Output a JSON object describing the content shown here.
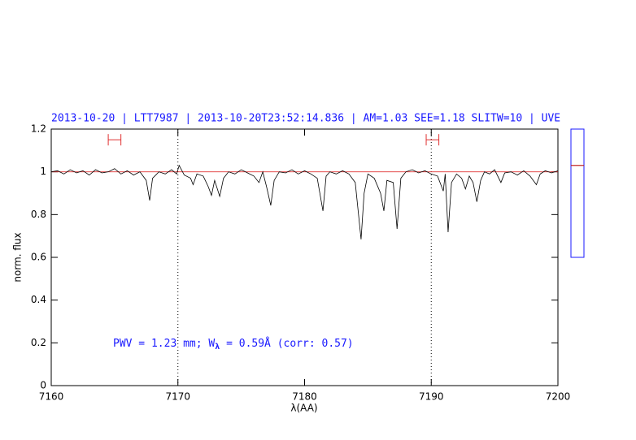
{
  "chart_data": {
    "type": "line",
    "title": "2013-10-20 | LTT7987 | 2013-10-20T23:52:14.836 | AM=1.03 SEE=1.18 SLITW=10 | UVE",
    "xlabel": "λ(AA)",
    "ylabel": "norm. flux",
    "annotation": [
      "PWV = 1.23 mm; W",
      "λ",
      " = 0.59Å (corr: 0.57)"
    ],
    "xlim": [
      7160,
      7200
    ],
    "xticks": [
      7160,
      7170,
      7180,
      7190,
      7200
    ],
    "ylim": [
      0,
      1.2
    ],
    "yticks": [
      0,
      0.2,
      0.4,
      0.6,
      0.8,
      1,
      1.2
    ],
    "vlines": [
      7170,
      7190
    ],
    "hline": 1,
    "hline_color": "#e03030",
    "markers": [
      {
        "x": [
          7164.5,
          7165.5
        ],
        "y": 1.15
      },
      {
        "x": [
          7189.6,
          7190.6
        ],
        "y": 1.15
      }
    ],
    "indicator": {
      "range": [
        0.6,
        1.2
      ],
      "value": 1.03,
      "color": "#1a1aff",
      "line_color": "#c02020"
    },
    "series": [
      {
        "color": "#000000",
        "x": [
          7160.0,
          7160.5,
          7161.0,
          7161.5,
          7162.0,
          7162.5,
          7163.0,
          7163.5,
          7164.0,
          7164.5,
          7165.0,
          7165.5,
          7166.0,
          7166.5,
          7167.0,
          7167.5,
          7167.77,
          7168.0,
          7168.5,
          7169.0,
          7169.5,
          7169.9,
          7170.1,
          7170.5,
          7171.0,
          7171.2,
          7171.5,
          7172.0,
          7172.4,
          7172.65,
          7172.9,
          7173.3,
          7173.6,
          7174.0,
          7174.5,
          7175.0,
          7175.5,
          7176.0,
          7176.4,
          7176.7,
          7177.0,
          7177.33,
          7177.6,
          7178.0,
          7178.5,
          7179.0,
          7179.5,
          7180.0,
          7180.5,
          7181.0,
          7181.45,
          7181.7,
          7182.0,
          7182.5,
          7183.0,
          7183.5,
          7184.0,
          7184.46,
          7184.7,
          7185.0,
          7185.5,
          7186.0,
          7186.26,
          7186.5,
          7187.0,
          7187.3,
          7187.6,
          7188.0,
          7188.5,
          7189.0,
          7189.5,
          7190.0,
          7190.5,
          7190.95,
          7191.1,
          7191.33,
          7191.6,
          7192.0,
          7192.4,
          7192.7,
          7193.0,
          7193.3,
          7193.6,
          7193.9,
          7194.2,
          7194.6,
          7195.0,
          7195.5,
          7195.8,
          7196.3,
          7196.8,
          7197.3,
          7197.8,
          7198.3,
          7198.6,
          7199.0,
          7199.5,
          7200.0
        ],
        "values": [
          1.0,
          1.005,
          0.99,
          1.01,
          0.995,
          1.005,
          0.985,
          1.01,
          0.995,
          1.0,
          1.015,
          0.99,
          1.005,
          0.985,
          1.0,
          0.96,
          0.866,
          0.97,
          1.0,
          0.99,
          1.01,
          0.99,
          1.03,
          0.985,
          0.97,
          0.94,
          0.99,
          0.98,
          0.93,
          0.89,
          0.96,
          0.885,
          0.97,
          1.0,
          0.99,
          1.01,
          0.995,
          0.98,
          0.95,
          1.0,
          0.93,
          0.843,
          0.96,
          1.0,
          0.995,
          1.01,
          0.99,
          1.005,
          0.99,
          0.97,
          0.817,
          0.98,
          1.0,
          0.99,
          1.005,
          0.99,
          0.95,
          0.684,
          0.9,
          0.99,
          0.97,
          0.9,
          0.817,
          0.96,
          0.95,
          0.733,
          0.97,
          1.0,
          1.01,
          0.995,
          1.005,
          0.99,
          0.98,
          0.91,
          0.99,
          0.718,
          0.95,
          0.99,
          0.97,
          0.92,
          0.98,
          0.95,
          0.86,
          0.96,
          1.0,
          0.99,
          1.01,
          0.95,
          0.995,
          1.0,
          0.985,
          1.005,
          0.98,
          0.94,
          0.99,
          1.005,
          0.995,
          1.005
        ]
      }
    ]
  }
}
